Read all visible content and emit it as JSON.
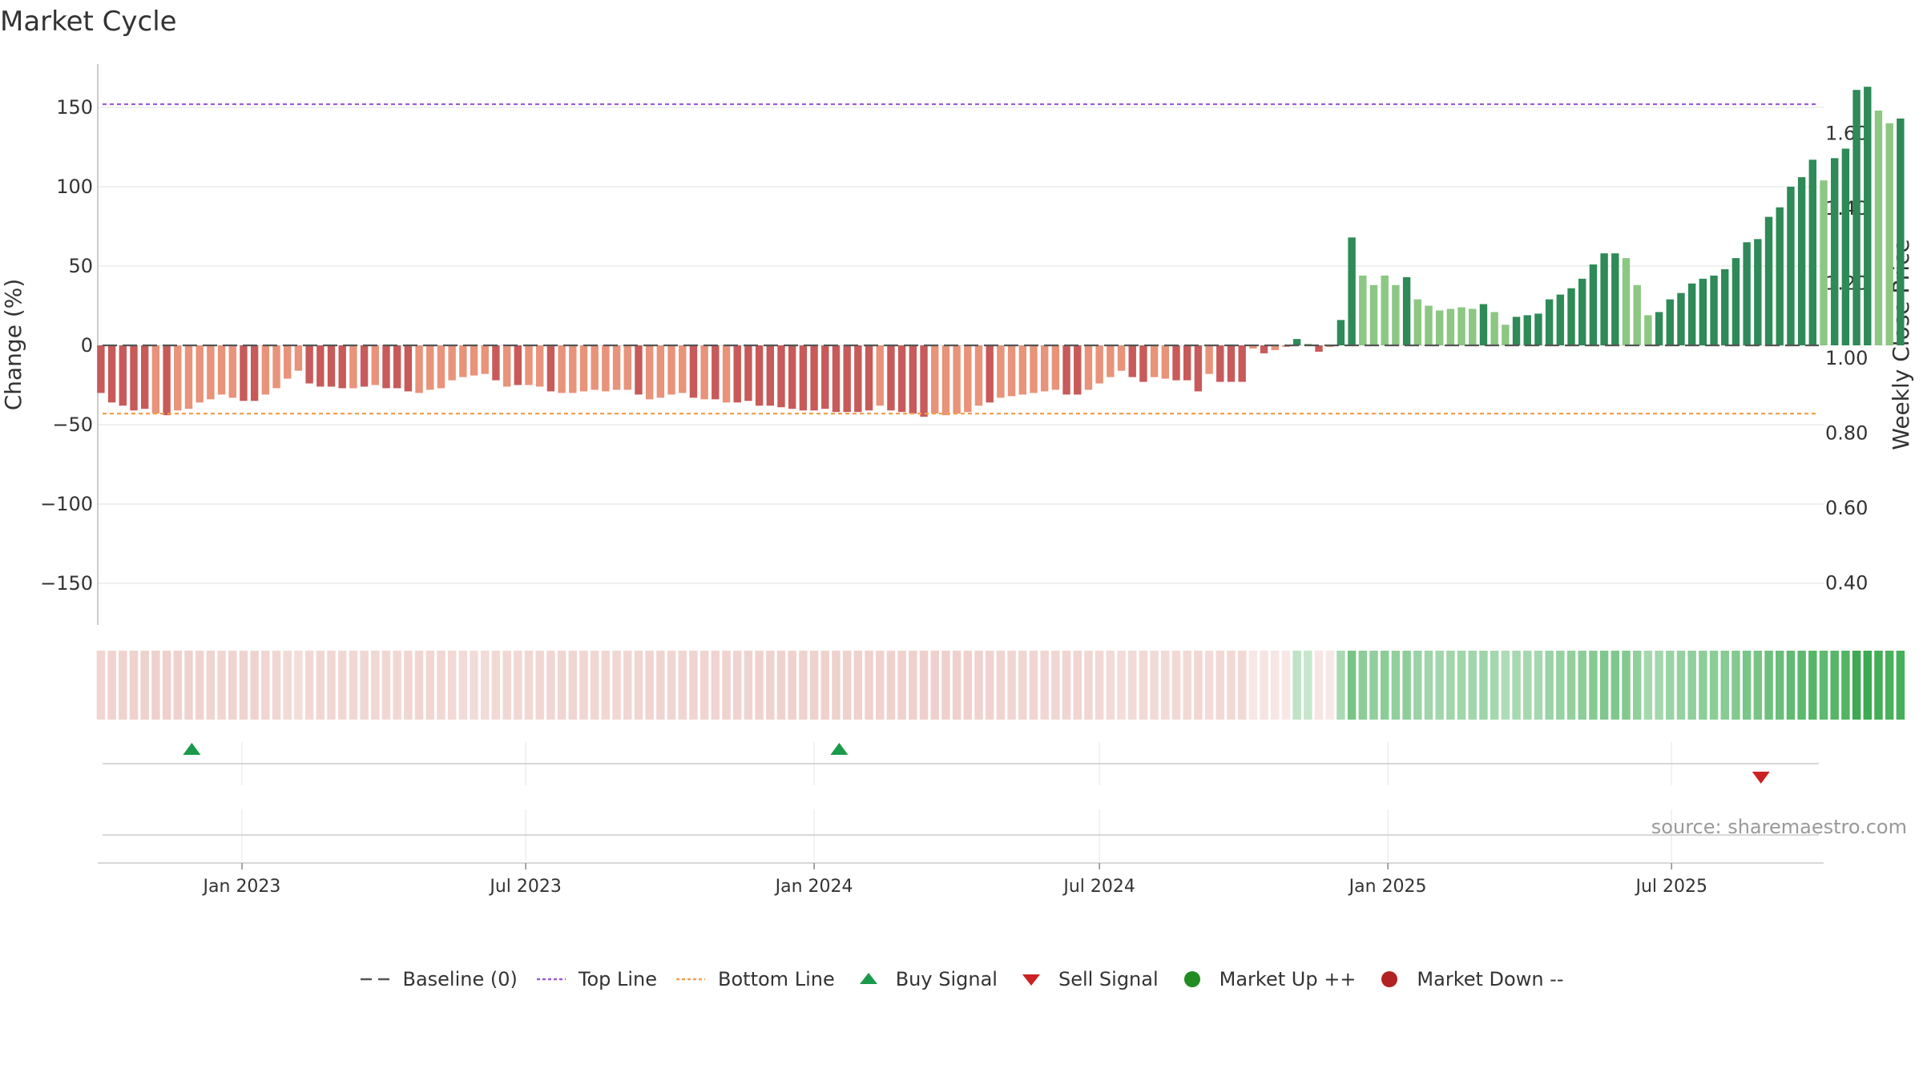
{
  "title": "Market Cycle",
  "source": "source: sharemaestro.com",
  "colors": {
    "down_dark": "#c85a5a",
    "down_light": "#e8937a",
    "up_dark": "#2e8a57",
    "up_light": "#8cc783",
    "top_line": "#9b59d6",
    "bottom_line": "#f0a050",
    "baseline": "#555555",
    "buy": "#1a9a4a",
    "sell": "#cc2222",
    "market_up": "#228b22",
    "market_down": "#b22222"
  },
  "chart_data": {
    "type": "bar",
    "title": "Market Cycle",
    "ylabel": "Change (%)",
    "ylabel_right": "Weekly Close Price",
    "ylim": [
      -178,
      178
    ],
    "ylim_right": [
      0.26,
      1.74
    ],
    "yticks": [
      150,
      100,
      50,
      0,
      -50,
      -100,
      -150
    ],
    "yticks_labels": [
      "150",
      "100",
      "50",
      "0",
      "−50",
      "−100",
      "−150"
    ],
    "yticks_right": [
      1.6,
      1.4,
      1.2,
      1.0,
      0.8,
      0.6,
      0.4
    ],
    "yticks_right_labels": [
      "1.60",
      "1.40",
      "1.20",
      "1.00",
      "0.80",
      "0.60",
      "0.40"
    ],
    "x_start": "2022-10-01",
    "x_end": "2025-10-06",
    "week_step_days": 7,
    "xticks": [
      {
        "date": "2023-01-01",
        "label": "Jan 2023"
      },
      {
        "date": "2023-07-01",
        "label": "Jul 2023"
      },
      {
        "date": "2024-01-01",
        "label": "Jan 2024"
      },
      {
        "date": "2024-07-01",
        "label": "Jul 2024"
      },
      {
        "date": "2025-01-01",
        "label": "Jan 2025"
      },
      {
        "date": "2025-07-01",
        "label": "Jul 2025"
      }
    ],
    "top_line": 152,
    "bottom_line": -43,
    "grid": true,
    "values": [
      -30,
      -36,
      -38,
      -41,
      -40,
      -43,
      -44,
      -41,
      -40,
      -36,
      -34,
      -31,
      -33,
      -35,
      -35,
      -31,
      -27,
      -21,
      -16,
      -24,
      -26,
      -26,
      -27,
      -27,
      -26,
      -25,
      -27,
      -27,
      -29,
      -30,
      -28,
      -27,
      -22,
      -20,
      -19,
      -18,
      -22,
      -26,
      -25,
      -25,
      -26,
      -29,
      -30,
      -30,
      -29,
      -28,
      -29,
      -28,
      -28,
      -31,
      -34,
      -33,
      -31,
      -30,
      -33,
      -34,
      -34,
      -36,
      -36,
      -35,
      -38,
      -38,
      -39,
      -40,
      -41,
      -41,
      -40,
      -42,
      -42,
      -42,
      -41,
      -38,
      -41,
      -42,
      -43,
      -45,
      -43,
      -44,
      -43,
      -42,
      -38,
      -36,
      -33,
      -32,
      -31,
      -30,
      -29,
      -28,
      -31,
      -31,
      -28,
      -24,
      -20,
      -16,
      -20,
      -23,
      -20,
      -21,
      -22,
      -22,
      -29,
      -18,
      -23,
      -23,
      -23,
      -2,
      -5,
      -3,
      -1,
      4,
      1,
      -4,
      -1,
      16,
      68,
      44,
      38,
      44,
      38,
      43,
      29,
      25,
      22,
      23,
      24,
      23,
      26,
      21,
      13,
      18,
      19,
      20,
      29,
      32,
      36,
      42,
      51,
      58,
      58,
      55,
      38,
      19,
      21,
      29,
      33,
      39,
      42,
      44,
      48,
      55,
      65,
      67,
      81,
      87,
      100,
      106,
      117,
      104,
      118,
      124,
      161,
      163,
      148,
      140,
      143
    ],
    "shades": [
      "d",
      "d",
      "d",
      "d",
      "d",
      "l",
      "d",
      "l",
      "l",
      "l",
      "l",
      "l",
      "l",
      "d",
      "d",
      "l",
      "l",
      "l",
      "l",
      "d",
      "d",
      "d",
      "d",
      "l",
      "d",
      "l",
      "d",
      "d",
      "d",
      "l",
      "l",
      "l",
      "l",
      "l",
      "l",
      "l",
      "d",
      "l",
      "d",
      "l",
      "l",
      "d",
      "l",
      "l",
      "l",
      "l",
      "l",
      "l",
      "l",
      "d",
      "l",
      "l",
      "l",
      "l",
      "d",
      "l",
      "d",
      "l",
      "d",
      "d",
      "d",
      "d",
      "d",
      "d",
      "d",
      "d",
      "d",
      "d",
      "d",
      "d",
      "d",
      "l",
      "d",
      "d",
      "d",
      "d",
      "l",
      "l",
      "l",
      "l",
      "l",
      "d",
      "l",
      "l",
      "l",
      "l",
      "l",
      "l",
      "d",
      "d",
      "l",
      "l",
      "l",
      "l",
      "d",
      "d",
      "l",
      "l",
      "d",
      "d",
      "d",
      "l",
      "d",
      "d",
      "d",
      "l",
      "d",
      "l",
      "l",
      "d",
      "l",
      "d",
      "l",
      "d",
      "d",
      "l",
      "l",
      "l",
      "l",
      "d",
      "l",
      "l",
      "l",
      "l",
      "l",
      "l",
      "d",
      "l",
      "l",
      "d",
      "d",
      "d",
      "d",
      "d",
      "d",
      "d",
      "d",
      "d",
      "d",
      "l",
      "l",
      "l",
      "d",
      "d",
      "d",
      "d",
      "d",
      "d",
      "d",
      "d",
      "d",
      "d",
      "d",
      "d",
      "d",
      "d",
      "d",
      "l",
      "d",
      "d",
      "d",
      "d",
      "l",
      "l",
      "d"
    ],
    "buy_signals": [
      "2022-11-30",
      "2024-01-17"
    ],
    "sell_signals": [
      "2025-08-27"
    ],
    "legend": [
      {
        "key": "baseline",
        "label": "Baseline (0)"
      },
      {
        "key": "top",
        "label": "Top Line"
      },
      {
        "key": "bottom",
        "label": "Bottom Line"
      },
      {
        "key": "buy",
        "label": "Buy Signal"
      },
      {
        "key": "sell",
        "label": "Sell Signal"
      },
      {
        "key": "up",
        "label": "Market Up ++"
      },
      {
        "key": "down",
        "label": "Market Down --"
      }
    ]
  }
}
